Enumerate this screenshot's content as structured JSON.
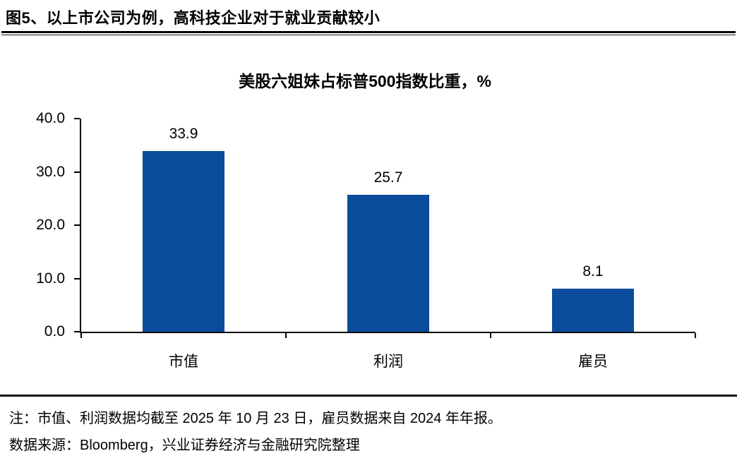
{
  "header": {
    "title": "图5、以上市公司为例，高科技企业对于就业贡献较小"
  },
  "chart_data": {
    "type": "bar",
    "title": "美股六姐妹占标普500指数比重，%",
    "categories": [
      "市值",
      "利润",
      "雇员"
    ],
    "slugs": [
      "market-cap",
      "profit",
      "employees"
    ],
    "values": [
      33.9,
      25.7,
      8.1
    ],
    "value_labels": [
      "33.9",
      "25.7",
      "8.1"
    ],
    "xlabel": "",
    "ylabel": "",
    "ylim": [
      0,
      40
    ],
    "yticks": [
      0,
      10,
      20,
      30,
      40
    ],
    "ytick_labels": [
      "0.0",
      "10.0",
      "20.0",
      "30.0",
      "40.0"
    ],
    "bar_color": "#0B4C9D",
    "grid": false,
    "legend_position": "none"
  },
  "footer": {
    "note": "注：市值、利润数据均截至 2025 年 10 月 23 日，雇员数据来自 2024 年年报。",
    "source": "数据来源：Bloomberg，兴业证券经济与金融研究院整理"
  }
}
